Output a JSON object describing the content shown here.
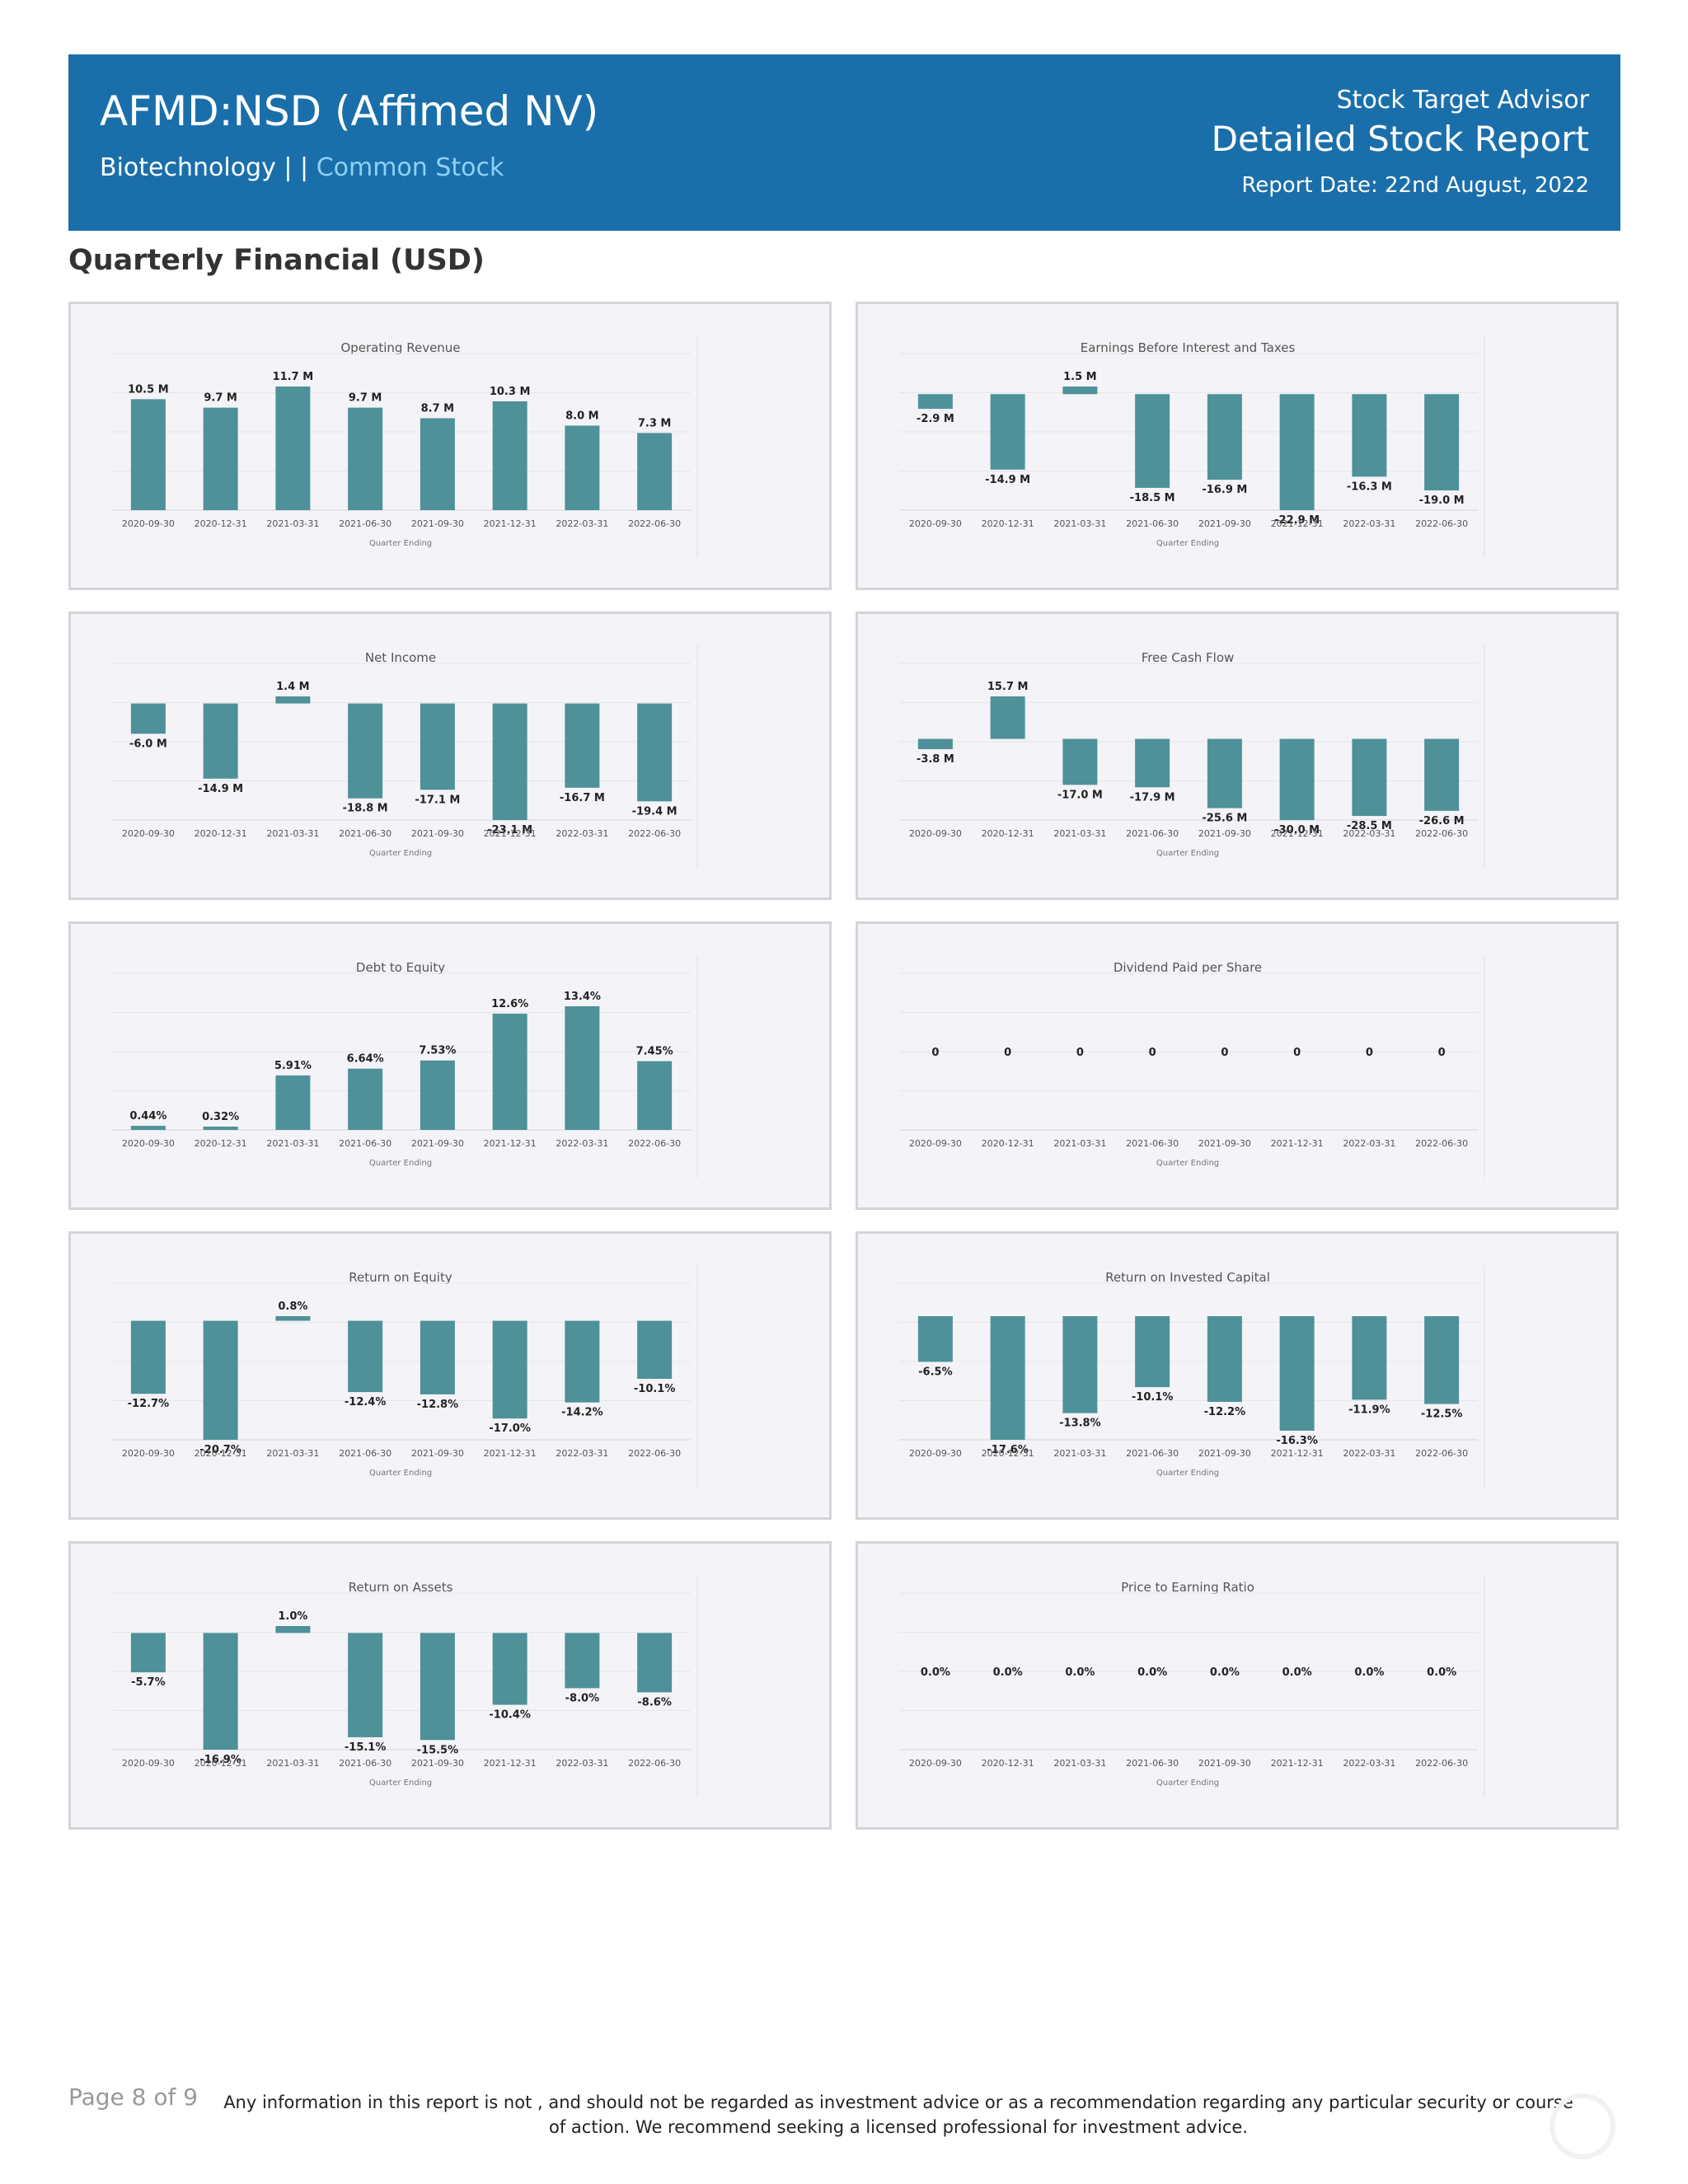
{
  "header": {
    "ticker": "AFMD:NSD (Affimed NV)",
    "sector": "Biotechnology",
    "separator": " | | ",
    "stock_type": "Common Stock",
    "brand": "Stock Target Advisor",
    "report_title": "Detailed Stock Report",
    "report_date": "Report Date: 22nd August, 2022"
  },
  "section_title": "Quarterly Financial (USD)",
  "chart_data": [
    {
      "type": "bar",
      "title": "Operating Revenue",
      "xlabel": "Quarter Ending",
      "categories": [
        "2020-09-30",
        "2020-12-31",
        "2021-03-31",
        "2021-06-30",
        "2021-09-30",
        "2021-12-31",
        "2022-03-31",
        "2022-06-30"
      ],
      "values": [
        10.5,
        9.7,
        11.7,
        9.7,
        8.7,
        10.3,
        8.0,
        7.3
      ],
      "labels": [
        "10.5 M",
        "9.7 M",
        "11.7 M",
        "9.7 M",
        "8.7 M",
        "10.3 M",
        "8.0 M",
        "7.3 M"
      ],
      "color": "#4e9199"
    },
    {
      "type": "bar",
      "title": "Earnings Before Interest and Taxes",
      "xlabel": "Quarter Ending",
      "categories": [
        "2020-09-30",
        "2020-12-31",
        "2021-03-31",
        "2021-06-30",
        "2021-09-30",
        "2021-12-31",
        "2022-03-31",
        "2022-06-30"
      ],
      "values": [
        -2.9,
        -14.9,
        1.5,
        -18.5,
        -16.9,
        -22.9,
        -16.3,
        -19.0
      ],
      "labels": [
        "-2.9 M",
        "-14.9 M",
        "1.5 M",
        "-18.5 M",
        "-16.9 M",
        "-22.9 M",
        "-16.3 M",
        "-19.0 M"
      ],
      "color": "#4e9199"
    },
    {
      "type": "bar",
      "title": "Net Income",
      "xlabel": "Quarter Ending",
      "categories": [
        "2020-09-30",
        "2020-12-31",
        "2021-03-31",
        "2021-06-30",
        "2021-09-30",
        "2021-12-31",
        "2022-03-31",
        "2022-06-30"
      ],
      "values": [
        -6.0,
        -14.9,
        1.4,
        -18.8,
        -17.1,
        -23.1,
        -16.7,
        -19.4
      ],
      "labels": [
        "-6.0 M",
        "-14.9 M",
        "1.4 M",
        "-18.8 M",
        "-17.1 M",
        "-23.1 M",
        "-16.7 M",
        "-19.4 M"
      ],
      "color": "#4e9199"
    },
    {
      "type": "bar",
      "title": "Free Cash Flow",
      "xlabel": "Quarter Ending",
      "categories": [
        "2020-09-30",
        "2020-12-31",
        "2021-03-31",
        "2021-06-30",
        "2021-09-30",
        "2021-12-31",
        "2022-03-31",
        "2022-06-30"
      ],
      "values": [
        -3.8,
        15.7,
        -17.0,
        -17.9,
        -25.6,
        -30.0,
        -28.5,
        -26.6
      ],
      "labels": [
        "-3.8 M",
        "15.7 M",
        "-17.0 M",
        "-17.9 M",
        "-25.6 M",
        "-30.0 M",
        "-28.5 M",
        "-26.6 M"
      ],
      "color": "#4e9199"
    },
    {
      "type": "bar",
      "title": "Debt to Equity",
      "xlabel": "Quarter Ending",
      "categories": [
        "2020-09-30",
        "2020-12-31",
        "2021-03-31",
        "2021-06-30",
        "2021-09-30",
        "2021-12-31",
        "2022-03-31",
        "2022-06-30"
      ],
      "values": [
        0.44,
        0.32,
        5.91,
        6.64,
        7.53,
        12.6,
        13.4,
        7.45
      ],
      "labels": [
        "0.44%",
        "0.32%",
        "5.91%",
        "6.64%",
        "7.53%",
        "12.6%",
        "13.4%",
        "7.45%"
      ],
      "color": "#4e9199"
    },
    {
      "type": "bar",
      "title": "Dividend Paid per Share",
      "xlabel": "Quarter Ending",
      "categories": [
        "2020-09-30",
        "2020-12-31",
        "2021-03-31",
        "2021-06-30",
        "2021-09-30",
        "2021-12-31",
        "2022-03-31",
        "2022-06-30"
      ],
      "values": [
        0,
        0,
        0,
        0,
        0,
        0,
        0,
        0
      ],
      "labels": [
        "0",
        "0",
        "0",
        "0",
        "0",
        "0",
        "0",
        "0"
      ],
      "color": "#4e9199"
    },
    {
      "type": "bar",
      "title": "Return on Equity",
      "xlabel": "Quarter Ending",
      "categories": [
        "2020-09-30",
        "2020-12-31",
        "2021-03-31",
        "2021-06-30",
        "2021-09-30",
        "2021-12-31",
        "2022-03-31",
        "2022-06-30"
      ],
      "values": [
        -12.7,
        -20.7,
        0.8,
        -12.4,
        -12.8,
        -17.0,
        -14.2,
        -10.1
      ],
      "labels": [
        "-12.7%",
        "-20.7%",
        "0.8%",
        "-12.4%",
        "-12.8%",
        "-17.0%",
        "-14.2%",
        "-10.1%"
      ],
      "color": "#4e9199"
    },
    {
      "type": "bar",
      "title": "Return on Invested Capital",
      "xlabel": "Quarter Ending",
      "categories": [
        "2020-09-30",
        "2020-12-31",
        "2021-03-31",
        "2021-06-30",
        "2021-09-30",
        "2021-12-31",
        "2022-03-31",
        "2022-06-30"
      ],
      "values": [
        -6.5,
        -17.6,
        -13.8,
        -10.1,
        -12.2,
        -16.3,
        -11.9,
        -12.5
      ],
      "labels": [
        "-6.5%",
        "-17.6%",
        "-13.8%",
        "-10.1%",
        "-12.2%",
        "-16.3%",
        "-11.9%",
        "-12.5%"
      ],
      "color": "#4e9199"
    },
    {
      "type": "bar",
      "title": "Return on Assets",
      "xlabel": "Quarter Ending",
      "categories": [
        "2020-09-30",
        "2020-12-31",
        "2021-03-31",
        "2021-06-30",
        "2021-09-30",
        "2021-12-31",
        "2022-03-31",
        "2022-06-30"
      ],
      "values": [
        -5.7,
        -16.9,
        1.0,
        -15.1,
        -15.5,
        -10.4,
        -8.0,
        -8.6
      ],
      "labels": [
        "-5.7%",
        "-16.9%",
        "1.0%",
        "-15.1%",
        "-15.5%",
        "-10.4%",
        "-8.0%",
        "-8.6%"
      ],
      "color": "#4e9199"
    },
    {
      "type": "bar",
      "title": "Price to Earning Ratio",
      "xlabel": "Quarter Ending",
      "categories": [
        "2020-09-30",
        "2020-12-31",
        "2021-03-31",
        "2021-06-30",
        "2021-09-30",
        "2021-12-31",
        "2022-03-31",
        "2022-06-30"
      ],
      "values": [
        0,
        0,
        0,
        0,
        0,
        0,
        0,
        0
      ],
      "labels": [
        "0.0%",
        "0.0%",
        "0.0%",
        "0.0%",
        "0.0%",
        "0.0%",
        "0.0%",
        "0.0%"
      ],
      "color": "#4e9199"
    }
  ],
  "footer": {
    "page": "Page 8 of 9",
    "disclaimer": "Any information in this report is not , and should not be regarded as investment advice or as a recommendation regarding any particular security or course of action. We recommend seeking a licensed professional for investment advice."
  }
}
